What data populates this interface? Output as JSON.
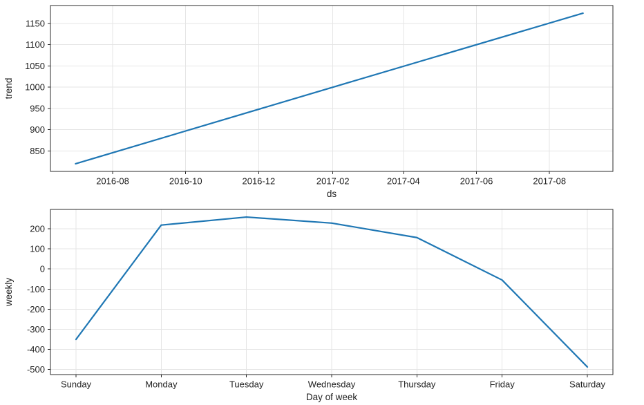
{
  "figure": {
    "background": "#ffffff",
    "line_color": "#1f77b4",
    "grid_color": "#e5e5e5",
    "spine_color": "#2b2b2b",
    "text_color": "#1f1f1f"
  },
  "chart_data": [
    {
      "id": "trend",
      "type": "line",
      "title": "",
      "xlabel": "ds",
      "ylabel": "trend",
      "x_kind": "time",
      "grid": true,
      "legend": "none",
      "xlim": [
        "2016-06-10",
        "2017-09-23"
      ],
      "ylim": [
        802,
        1192
      ],
      "x_ticks": [
        {
          "v": "2016-08-01",
          "label": "2016-08"
        },
        {
          "v": "2016-10-01",
          "label": "2016-10"
        },
        {
          "v": "2016-12-01",
          "label": "2016-12"
        },
        {
          "v": "2017-02-01",
          "label": "2017-02"
        },
        {
          "v": "2017-04-01",
          "label": "2017-04"
        },
        {
          "v": "2017-06-01",
          "label": "2017-06"
        },
        {
          "v": "2017-08-01",
          "label": "2017-08"
        }
      ],
      "y_ticks": [
        850,
        900,
        950,
        1000,
        1050,
        1100,
        1150
      ],
      "series": [
        {
          "name": "trend",
          "color": "#1f77b4",
          "points": [
            [
              "2016-07-01",
              820
            ],
            [
              "2017-02-01",
              1000
            ],
            [
              "2017-08-29",
              1174
            ]
          ]
        }
      ]
    },
    {
      "id": "weekly",
      "type": "line",
      "title": "",
      "xlabel": "Day of week",
      "ylabel": "weekly",
      "x_kind": "linear",
      "grid": true,
      "legend": "none",
      "xlim": [
        -0.3,
        6.3
      ],
      "ylim": [
        -525,
        296
      ],
      "x_ticks": [
        {
          "v": 0,
          "label": "Sunday"
        },
        {
          "v": 1,
          "label": "Monday"
        },
        {
          "v": 2,
          "label": "Tuesday"
        },
        {
          "v": 3,
          "label": "Wednesday"
        },
        {
          "v": 4,
          "label": "Thursday"
        },
        {
          "v": 5,
          "label": "Friday"
        },
        {
          "v": 6,
          "label": "Saturday"
        }
      ],
      "y_ticks": [
        -500,
        -400,
        -300,
        -200,
        -100,
        0,
        100,
        200
      ],
      "series": [
        {
          "name": "weekly",
          "color": "#1f77b4",
          "points": [
            [
              0,
              -350
            ],
            [
              1,
              218
            ],
            [
              2,
              258
            ],
            [
              3,
              228
            ],
            [
              4,
              156
            ],
            [
              5,
              -55
            ],
            [
              6,
              -487
            ]
          ]
        }
      ]
    }
  ]
}
